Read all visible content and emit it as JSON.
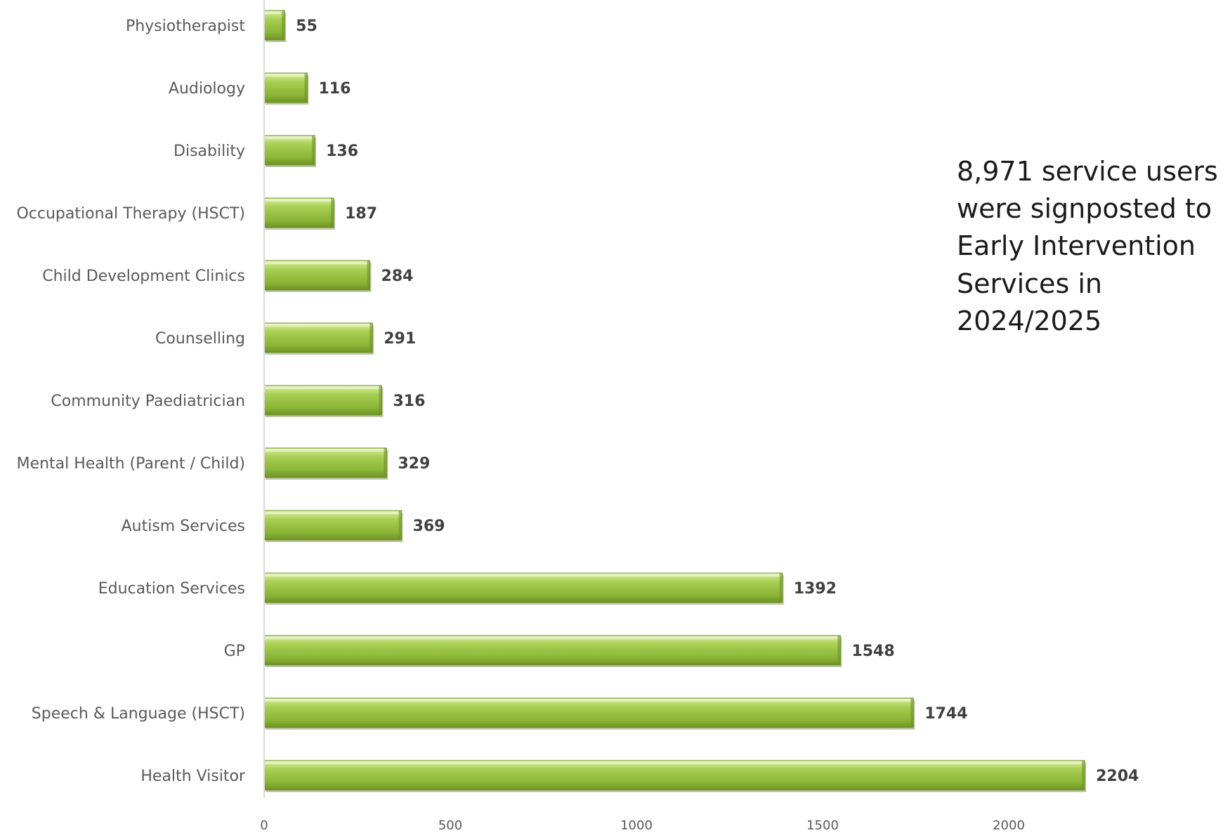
{
  "chart_data": {
    "type": "bar",
    "orientation": "horizontal",
    "categories": [
      "Physiotherapist",
      "Audiology",
      "Disability",
      "Occupational Therapy (HSCT)",
      "Child Development Clinics",
      "Counselling",
      "Community Paediatrician",
      "Mental Health (Parent / Child)",
      "Autism Services",
      "Education Services",
      "GP",
      "Speech & Language (HSCT)",
      "Health Visitor"
    ],
    "values": [
      55,
      116,
      136,
      187,
      284,
      291,
      316,
      329,
      369,
      1392,
      1548,
      1744,
      2204
    ],
    "value_labels": [
      "55",
      "116",
      "136",
      "187",
      "284",
      "291",
      "316",
      "329",
      "369",
      "1392",
      "1548",
      "1744",
      "2204"
    ],
    "xlim": [
      0,
      2200
    ],
    "xticks": [
      "0",
      "500",
      "1000",
      "1500",
      "2000"
    ],
    "xtick_values": [
      0,
      500,
      1000,
      1500,
      2000
    ],
    "grid": false,
    "legend": "none",
    "title": "",
    "xlabel": "",
    "ylabel": "",
    "bar_color": "#8fba3a",
    "annotation": "8,971 service users were signposted to Early Intervention Services in 2024/2025"
  }
}
